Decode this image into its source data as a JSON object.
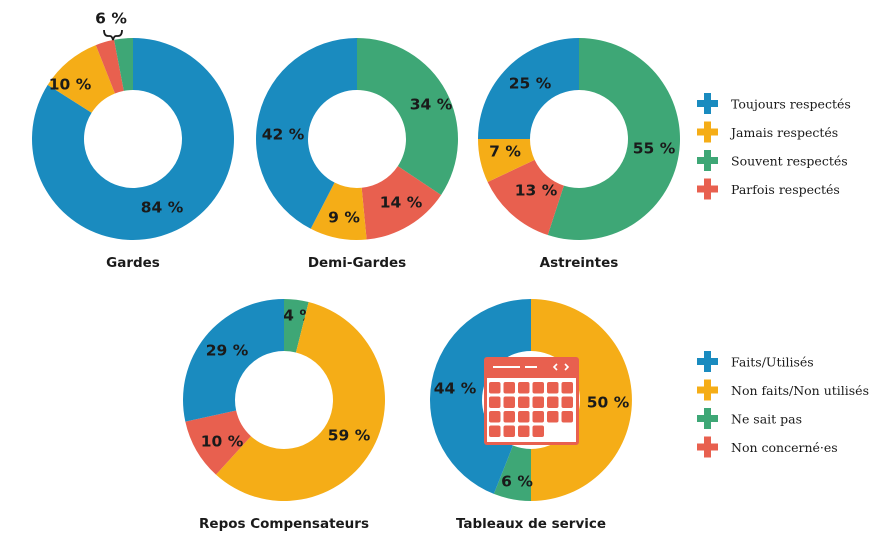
{
  "colors": {
    "blue": "#1A8BBF",
    "yellow": "#F5AD17",
    "green": "#3EA776",
    "red": "#E8604F"
  },
  "legends": [
    {
      "items": [
        {
          "label": "Toujours respectés",
          "color": "#1A8BBF"
        },
        {
          "label": "Jamais respectés",
          "color": "#F5AD17"
        },
        {
          "label": "Souvent respectés",
          "color": "#3EA776"
        },
        {
          "label": "Parfois respectés",
          "color": "#E8604F"
        }
      ]
    },
    {
      "items": [
        {
          "label": "Faits/Utilisés",
          "color": "#1A8BBF"
        },
        {
          "label": "Non faits/Non utilisés",
          "color": "#F5AD17"
        },
        {
          "label": "Ne sait pas",
          "color": "#3EA776"
        },
        {
          "label": "Non concerné·es",
          "color": "#E8604F"
        }
      ]
    }
  ],
  "chart_data": [
    {
      "type": "pie",
      "title": "Gardes",
      "slices": [
        {
          "label": "84 %",
          "value": 84,
          "color": "#1A8BBF"
        },
        {
          "label": "10 %",
          "value": 10,
          "color": "#F5AD17"
        },
        {
          "label": "",
          "value": 3,
          "color": "#E8604F"
        },
        {
          "label": "",
          "value": 3,
          "color": "#3EA776"
        }
      ],
      "annotation": "6 %"
    },
    {
      "type": "pie",
      "title": "Demi-Gardes",
      "slices": [
        {
          "label": "34 %",
          "value": 34,
          "color": "#3EA776"
        },
        {
          "label": "14 %",
          "value": 14,
          "color": "#E8604F"
        },
        {
          "label": "9 %",
          "value": 9,
          "color": "#F5AD17"
        },
        {
          "label": "42 %",
          "value": 42,
          "color": "#1A8BBF"
        }
      ]
    },
    {
      "type": "pie",
      "title": "Astreintes",
      "slices": [
        {
          "label": "55 %",
          "value": 55,
          "color": "#3EA776"
        },
        {
          "label": "13 %",
          "value": 13,
          "color": "#E8604F"
        },
        {
          "label": "7 %",
          "value": 7,
          "color": "#F5AD17"
        },
        {
          "label": "25 %",
          "value": 25,
          "color": "#1A8BBF"
        }
      ]
    },
    {
      "type": "pie",
      "title": "Repos Compensateurs",
      "slices": [
        {
          "label": "4 %",
          "value": 4,
          "color": "#3EA776"
        },
        {
          "label": "59 %",
          "value": 59,
          "color": "#F5AD17"
        },
        {
          "label": "10 %",
          "value": 10,
          "color": "#E8604F"
        },
        {
          "label": "29 %",
          "value": 29,
          "color": "#1A8BBF"
        }
      ]
    },
    {
      "type": "pie",
      "title": "Tableaux de service",
      "slices": [
        {
          "label": "50 %",
          "value": 50,
          "color": "#F5AD17"
        },
        {
          "label": "6 %",
          "value": 6,
          "color": "#3EA776"
        },
        {
          "label": "44 %",
          "value": 44,
          "color": "#1A8BBF"
        }
      ],
      "icon": "calendar-icon"
    }
  ]
}
